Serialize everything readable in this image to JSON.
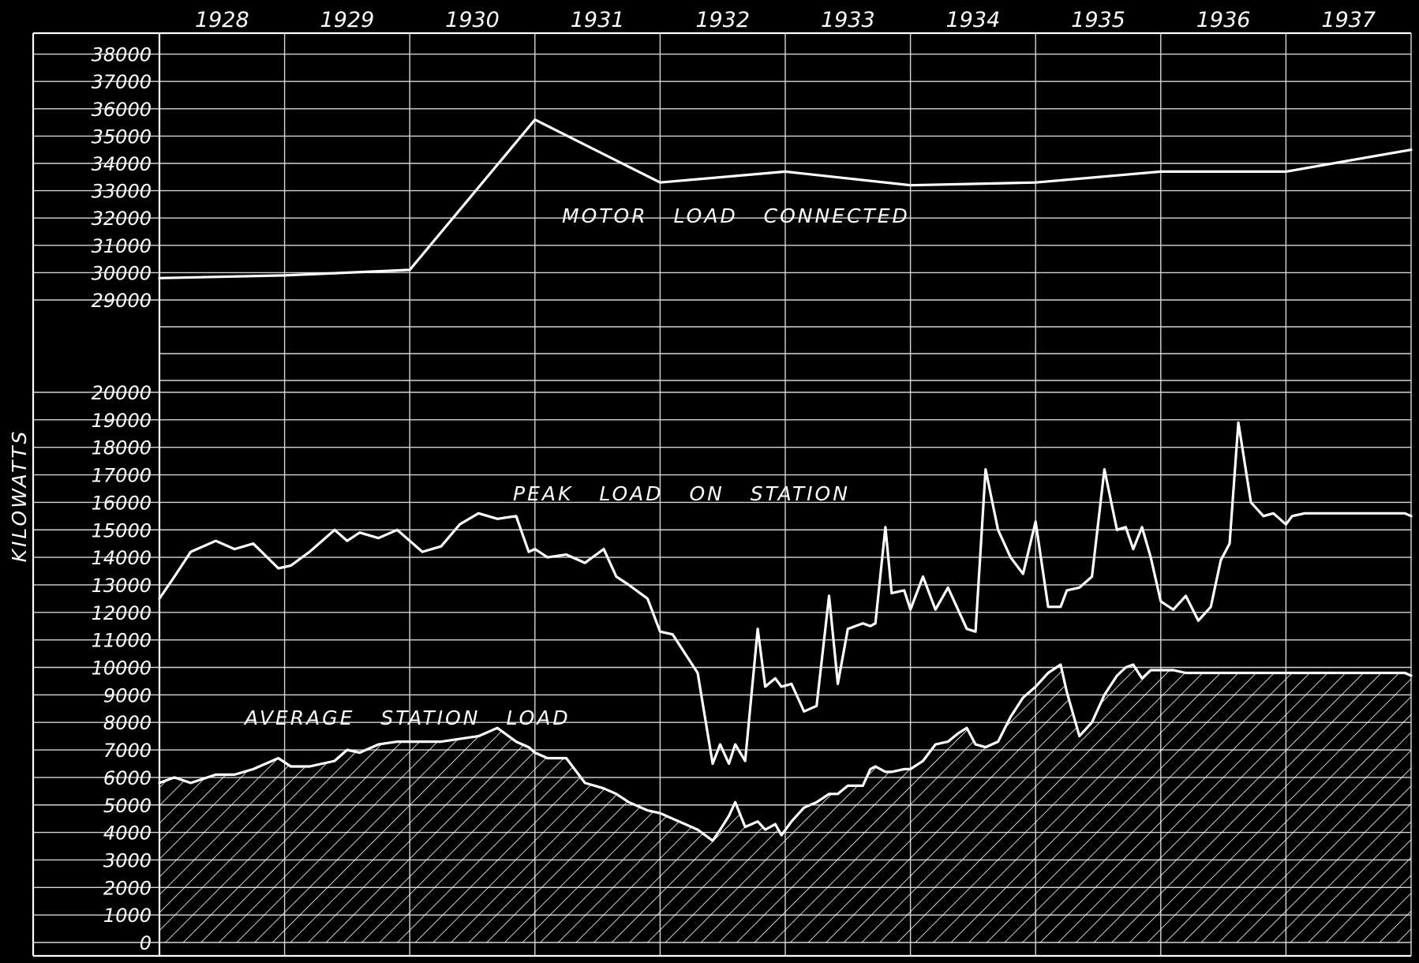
{
  "chart_data": {
    "type": "line",
    "ylabel": "KILOWATTS",
    "x_tick_labels": [
      "1928",
      "1929",
      "1930",
      "1931",
      "1932",
      "1933",
      "1934",
      "1935",
      "1936",
      "1937"
    ],
    "xlim": [
      1928.0,
      1938.0
    ],
    "y_tick_labels": [
      "0",
      "1000",
      "2000",
      "3000",
      "4000",
      "5000",
      "6000",
      "7000",
      "8000",
      "9000",
      "10000",
      "11000",
      "12000",
      "13000",
      "14000",
      "15000",
      "16000",
      "17000",
      "18000",
      "19000",
      "20000",
      "29000",
      "30000",
      "31000",
      "32000",
      "33000",
      "34000",
      "35000",
      "36000",
      "37000",
      "38000"
    ],
    "ylim": [
      0,
      38000
    ],
    "hatch_color": "#ffffff",
    "line_color": "#ffffff",
    "background_color": "#000000",
    "grid": true,
    "series": [
      {
        "name": "MOTOR LOAD CONNECTED",
        "x": [
          1928.0,
          1929.0,
          1930.0,
          1931.0,
          1932.0,
          1933.0,
          1934.0,
          1935.0,
          1936.0,
          1937.0,
          1938.0
        ],
        "y": [
          29800,
          29900,
          30100,
          35600,
          33300,
          33700,
          33200,
          33300,
          33700,
          33700,
          34500
        ]
      },
      {
        "name": "PEAK LOAD ON STATION",
        "x": [
          1928.0,
          1928.12,
          1928.25,
          1928.45,
          1928.6,
          1928.75,
          1928.95,
          1929.05,
          1929.2,
          1929.4,
          1929.5,
          1929.6,
          1929.75,
          1929.9,
          1930.0,
          1930.1,
          1930.25,
          1930.4,
          1930.55,
          1930.7,
          1930.85,
          1930.95,
          1931.0,
          1931.1,
          1931.25,
          1931.4,
          1931.55,
          1931.65,
          1931.75,
          1931.9,
          1932.0,
          1932.1,
          1932.3,
          1932.42,
          1932.48,
          1932.55,
          1932.6,
          1932.68,
          1932.78,
          1932.84,
          1932.92,
          1932.97,
          1933.05,
          1933.15,
          1933.25,
          1933.35,
          1933.42,
          1933.5,
          1933.62,
          1933.68,
          1933.72,
          1933.8,
          1933.85,
          1933.95,
          1934.0,
          1934.1,
          1934.2,
          1934.3,
          1934.38,
          1934.45,
          1934.52,
          1934.6,
          1934.7,
          1934.8,
          1934.9,
          1935.0,
          1935.1,
          1935.2,
          1935.25,
          1935.35,
          1935.45,
          1935.55,
          1935.65,
          1935.72,
          1935.78,
          1935.85,
          1935.92,
          1936.0,
          1936.1,
          1936.2,
          1936.3,
          1936.4,
          1936.48,
          1936.55,
          1936.62,
          1936.72,
          1936.82,
          1936.9,
          1937.0,
          1937.05,
          1937.15,
          1937.25,
          1937.35,
          1937.45,
          1937.55,
          1937.65,
          1937.75,
          1937.85,
          1937.95,
          1938.0
        ],
        "y": [
          12500,
          13300,
          14200,
          14600,
          14300,
          14500,
          13600,
          13700,
          14200,
          15000,
          14600,
          14900,
          14700,
          15000,
          14600,
          14200,
          14400,
          15200,
          15600,
          15400,
          15500,
          14200,
          14300,
          14000,
          14100,
          13800,
          14300,
          13300,
          13000,
          12500,
          11300,
          11200,
          9800,
          6500,
          7200,
          6500,
          7200,
          6600,
          11400,
          9300,
          9600,
          9300,
          9400,
          8400,
          8600,
          12600,
          9400,
          11400,
          11600,
          11500,
          11600,
          15100,
          12700,
          12800,
          12100,
          13300,
          12100,
          12900,
          12100,
          11400,
          11300,
          17200,
          15000,
          14000,
          13400,
          15300,
          12200,
          12200,
          12800,
          12900,
          13300,
          17200,
          15000,
          15100,
          14300,
          15100,
          14000,
          12400,
          12100,
          12600,
          11700,
          12200,
          13900,
          14500,
          18900,
          16000,
          15500,
          15600,
          15200,
          15500,
          15600,
          15600,
          15600,
          15600,
          15600,
          15600,
          15600,
          15600,
          15600,
          15500
        ]
      },
      {
        "name": "AVERAGE STATION LOAD",
        "x": [
          1928.0,
          1928.12,
          1928.25,
          1928.45,
          1928.6,
          1928.75,
          1928.95,
          1929.05,
          1929.2,
          1929.4,
          1929.5,
          1929.6,
          1929.75,
          1929.9,
          1930.0,
          1930.1,
          1930.25,
          1930.4,
          1930.55,
          1930.7,
          1930.85,
          1930.95,
          1931.0,
          1931.1,
          1931.25,
          1931.4,
          1931.55,
          1931.65,
          1931.75,
          1931.9,
          1932.0,
          1932.1,
          1932.3,
          1932.42,
          1932.48,
          1932.55,
          1932.6,
          1932.68,
          1932.78,
          1932.84,
          1932.92,
          1932.97,
          1933.05,
          1933.15,
          1933.25,
          1933.35,
          1933.42,
          1933.5,
          1933.62,
          1933.68,
          1933.72,
          1933.8,
          1933.85,
          1933.95,
          1934.0,
          1934.1,
          1934.2,
          1934.3,
          1934.38,
          1934.45,
          1934.52,
          1934.6,
          1934.7,
          1934.8,
          1934.9,
          1935.0,
          1935.1,
          1935.2,
          1935.25,
          1935.35,
          1935.45,
          1935.55,
          1935.65,
          1935.72,
          1935.78,
          1935.85,
          1935.92,
          1936.0,
          1936.1,
          1936.2,
          1936.3,
          1936.4,
          1936.48,
          1936.55,
          1936.62,
          1936.72,
          1936.82,
          1936.9,
          1937.0,
          1937.05,
          1937.15,
          1937.25,
          1937.35,
          1937.45,
          1937.55,
          1937.65,
          1937.75,
          1937.85,
          1937.95,
          1938.0
        ],
        "y": [
          5800,
          6000,
          5800,
          6100,
          6100,
          6300,
          6700,
          6400,
          6400,
          6600,
          7000,
          6900,
          7200,
          7300,
          7300,
          7300,
          7300,
          7400,
          7500,
          7800,
          7300,
          7100,
          6900,
          6700,
          6700,
          5800,
          5600,
          5400,
          5100,
          4800,
          4700,
          4500,
          4100,
          3700,
          4100,
          4600,
          5100,
          4200,
          4400,
          4100,
          4300,
          3900,
          4400,
          4900,
          5100,
          5400,
          5400,
          5700,
          5700,
          6300,
          6400,
          6200,
          6200,
          6300,
          6300,
          6600,
          7200,
          7300,
          7600,
          7800,
          7200,
          7100,
          7300,
          8200,
          8900,
          9300,
          9800,
          10100,
          9100,
          7500,
          8000,
          9000,
          9700,
          10000,
          10100,
          9600,
          9900,
          9900,
          9900,
          9800,
          9800,
          9800,
          9800,
          9800,
          9800,
          9800,
          9800,
          9800,
          9800,
          9800,
          9800,
          9800,
          9800,
          9800,
          9800,
          9800,
          9800,
          9800,
          9800,
          9700
        ]
      }
    ]
  }
}
